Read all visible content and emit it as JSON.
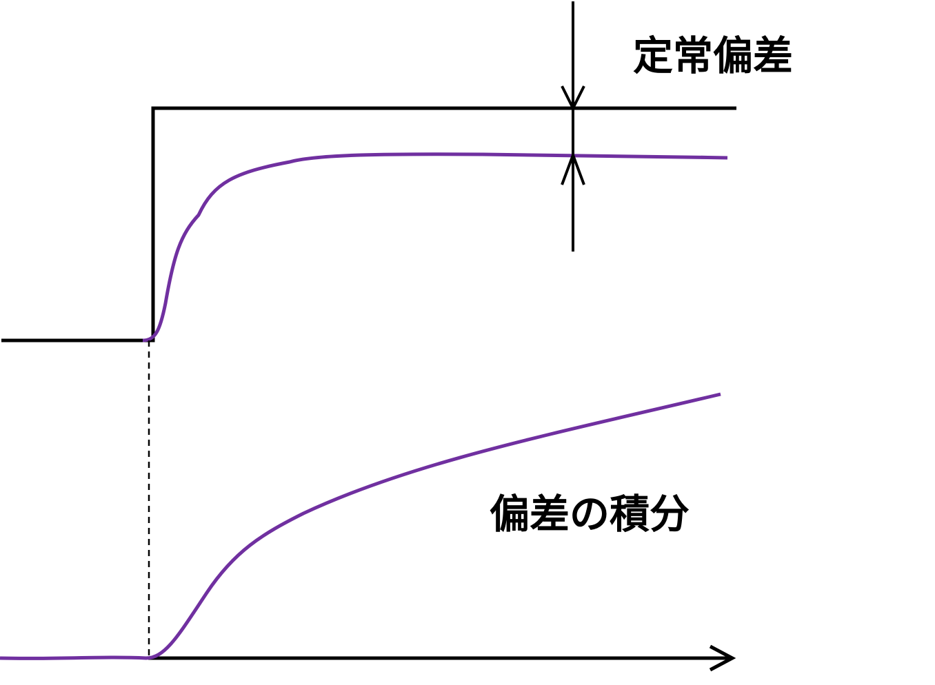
{
  "labels": {
    "steady_state_error": "定常偏差",
    "error_integral": "偏差の積分"
  }
}
